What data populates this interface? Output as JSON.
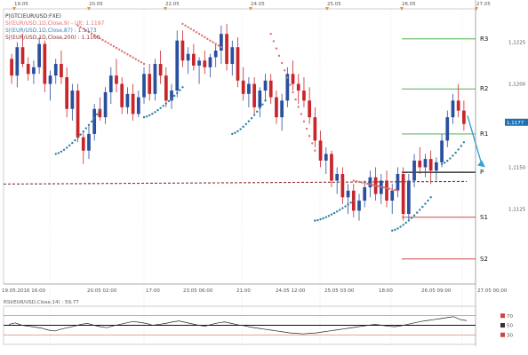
{
  "window": {
    "legend_lines": [
      {
        "text": "P|GTC(EUR/USD:FXE)",
        "color": "#333333"
      },
      {
        "text": "S|(EUR/USD,1D,Close,9) - Ult: 1.1197",
        "color": "#e07070"
      },
      {
        "text": "S|(EUR/USD,1D,Close,87) : 1.1173",
        "color": "#3b7fb5"
      },
      {
        "text": "S|(EUR/USD,1D,Close,200) : 1.1160",
        "color": "#8a3030"
      }
    ]
  },
  "top_dates": [
    "19.05",
    "20.05",
    "22.05",
    "24.05",
    "25.05",
    "26.05",
    "27.05"
  ],
  "bottom_dates": [
    "19.05.2016 16:00",
    "20.05 02:00",
    "17:00",
    "23.05 06:00",
    "21:00",
    "24.05 12:00",
    "25.05 03:00",
    "18:00",
    "26.05 09:00",
    "27.05 00:00"
  ],
  "price_labels": [
    "1,1225",
    "1,1200",
    "1,1150",
    "1,1125"
  ],
  "current_price": "1,1177",
  "pivot_levels": [
    {
      "name": "R3",
      "color": "#38a838"
    },
    {
      "name": "R2",
      "color": "#38a838"
    },
    {
      "name": "R1",
      "color": "#38a838"
    },
    {
      "name": "P",
      "color": "#111111"
    },
    {
      "name": "S1",
      "color": "#cc2a2a"
    },
    {
      "name": "S2",
      "color": "#cc2a2a"
    }
  ],
  "rsi_panel": {
    "title": "RSI(EUR/USD,Close,14) : 59,77",
    "axis_labels": [
      "70",
      "50",
      "30"
    ]
  },
  "colors": {
    "bull_candle": "#2a4f9e",
    "bear_candle": "#c9262b",
    "sar_down": "#e07070",
    "sar_up": "#2a7ea0",
    "arrow": "#3aa0d6",
    "ma_dashed": "#8a3030"
  },
  "chart_data": {
    "type": "candlestick",
    "series_candles": "EUR/USD",
    "pivots": {
      "R3": 1.1227,
      "R2": 1.1197,
      "R1": 1.117,
      "P": 1.1147,
      "S1": 1.112,
      "S2": 1.1095
    },
    "ma_value": 1.1141,
    "rsi_last": 59.77,
    "candles": [
      [
        1.1215,
        1.1218,
        1.12,
        1.1205
      ],
      [
        1.1205,
        1.1225,
        1.1198,
        1.1222
      ],
      [
        1.1222,
        1.123,
        1.121,
        1.1212
      ],
      [
        1.1212,
        1.1216,
        1.1202,
        1.1206
      ],
      [
        1.1206,
        1.1214,
        1.12,
        1.121
      ],
      [
        1.121,
        1.1228,
        1.1206,
        1.1224
      ],
      [
        1.1224,
        1.1226,
        1.1195,
        1.12
      ],
      [
        1.12,
        1.1208,
        1.119,
        1.1205
      ],
      [
        1.1205,
        1.1215,
        1.12,
        1.1212
      ],
      [
        1.1212,
        1.122,
        1.12,
        1.1204
      ],
      [
        1.1204,
        1.121,
        1.118,
        1.1185
      ],
      [
        1.1185,
        1.12,
        1.1178,
        1.1196
      ],
      [
        1.1196,
        1.12,
        1.1165,
        1.1168
      ],
      [
        1.1168,
        1.1172,
        1.1152,
        1.116
      ],
      [
        1.116,
        1.1175,
        1.1155,
        1.117
      ],
      [
        1.117,
        1.1188,
        1.1166,
        1.1185
      ],
      [
        1.1185,
        1.1192,
        1.1178,
        1.118
      ],
      [
        1.118,
        1.1198,
        1.1176,
        1.1195
      ],
      [
        1.1195,
        1.121,
        1.1188,
        1.1205
      ],
      [
        1.1205,
        1.1215,
        1.1195,
        1.12
      ],
      [
        1.12,
        1.1204,
        1.1182,
        1.1186
      ],
      [
        1.1186,
        1.1198,
        1.1182,
        1.1194
      ],
      [
        1.1194,
        1.12,
        1.1178,
        1.1182
      ],
      [
        1.1182,
        1.1196,
        1.118,
        1.1192
      ],
      [
        1.1192,
        1.121,
        1.1188,
        1.1206
      ],
      [
        1.1206,
        1.1212,
        1.119,
        1.1194
      ],
      [
        1.1194,
        1.1215,
        1.119,
        1.1212
      ],
      [
        1.1212,
        1.122,
        1.12,
        1.1205
      ],
      [
        1.1205,
        1.121,
        1.1186,
        1.119
      ],
      [
        1.119,
        1.12,
        1.1185,
        1.1196
      ],
      [
        1.1196,
        1.1232,
        1.1192,
        1.1226
      ],
      [
        1.1226,
        1.1232,
        1.121,
        1.1214
      ],
      [
        1.1214,
        1.1222,
        1.1206,
        1.1218
      ],
      [
        1.1218,
        1.1224,
        1.1208,
        1.1211
      ],
      [
        1.1211,
        1.1216,
        1.12,
        1.1214
      ],
      [
        1.1214,
        1.122,
        1.1206,
        1.121
      ],
      [
        1.121,
        1.1218,
        1.1204,
        1.1216
      ],
      [
        1.1216,
        1.1224,
        1.121,
        1.122
      ],
      [
        1.122,
        1.1235,
        1.1212,
        1.123
      ],
      [
        1.123,
        1.1236,
        1.1208,
        1.1212
      ],
      [
        1.1212,
        1.1226,
        1.1205,
        1.1222
      ],
      [
        1.1222,
        1.1228,
        1.1198,
        1.1202
      ],
      [
        1.1202,
        1.121,
        1.119,
        1.1194
      ],
      [
        1.1194,
        1.1204,
        1.1186,
        1.12
      ],
      [
        1.12,
        1.1204,
        1.1182,
        1.1186
      ],
      [
        1.1186,
        1.1198,
        1.118,
        1.1196
      ],
      [
        1.1196,
        1.1206,
        1.119,
        1.1202
      ],
      [
        1.1202,
        1.1206,
        1.1188,
        1.1192
      ],
      [
        1.1192,
        1.1196,
        1.1176,
        1.118
      ],
      [
        1.118,
        1.1194,
        1.1172,
        1.119
      ],
      [
        1.119,
        1.121,
        1.1186,
        1.1206
      ],
      [
        1.1206,
        1.1214,
        1.1196,
        1.12
      ],
      [
        1.12,
        1.1206,
        1.1188,
        1.1196
      ],
      [
        1.1196,
        1.1204,
        1.1186,
        1.119
      ],
      [
        1.119,
        1.1198,
        1.1176,
        1.118
      ],
      [
        1.118,
        1.1186,
        1.1162,
        1.1166
      ],
      [
        1.1166,
        1.1172,
        1.115,
        1.1154
      ],
      [
        1.1154,
        1.1162,
        1.1146,
        1.1158
      ],
      [
        1.1158,
        1.116,
        1.1138,
        1.1142
      ],
      [
        1.1142,
        1.115,
        1.1134,
        1.1146
      ],
      [
        1.1146,
        1.115,
        1.1128,
        1.1132
      ],
      [
        1.1132,
        1.114,
        1.1122,
        1.1136
      ],
      [
        1.1136,
        1.114,
        1.112,
        1.1124
      ],
      [
        1.1124,
        1.1134,
        1.1118,
        1.113
      ],
      [
        1.113,
        1.1142,
        1.1126,
        1.1138
      ],
      [
        1.1138,
        1.1148,
        1.1132,
        1.1144
      ],
      [
        1.1144,
        1.115,
        1.113,
        1.1134
      ],
      [
        1.1134,
        1.1146,
        1.1128,
        1.1142
      ],
      [
        1.1142,
        1.1148,
        1.1126,
        1.113
      ],
      [
        1.113,
        1.114,
        1.1122,
        1.1136
      ],
      [
        1.1136,
        1.115,
        1.1132,
        1.1146
      ],
      [
        1.1146,
        1.115,
        1.1118,
        1.1122
      ],
      [
        1.1122,
        1.1146,
        1.1118,
        1.1142
      ],
      [
        1.1142,
        1.1158,
        1.1138,
        1.1154
      ],
      [
        1.1154,
        1.1162,
        1.1146,
        1.115
      ],
      [
        1.115,
        1.1158,
        1.1144,
        1.1155
      ],
      [
        1.1155,
        1.116,
        1.114,
        1.1148
      ],
      [
        1.1148,
        1.1156,
        1.1142,
        1.1153
      ],
      [
        1.1153,
        1.117,
        1.115,
        1.1166
      ],
      [
        1.1166,
        1.1184,
        1.1162,
        1.118
      ],
      [
        1.118,
        1.1194,
        1.1176,
        1.119
      ],
      [
        1.119,
        1.12,
        1.118,
        1.1184
      ],
      [
        1.1184,
        1.119,
        1.1172,
        1.1176
      ]
    ],
    "sar_up_segments": [
      [
        8,
        16,
        1.1158,
        1.1184
      ],
      [
        24,
        31,
        1.118,
        1.1198
      ],
      [
        40,
        46,
        1.117,
        1.119
      ],
      [
        55,
        62,
        1.1118,
        1.113
      ],
      [
        69,
        76,
        1.1112,
        1.1132
      ],
      [
        78,
        82,
        1.1152,
        1.1165
      ]
    ],
    "sar_down_segments": [
      [
        12,
        24,
        1.1235,
        1.1212
      ],
      [
        31,
        38,
        1.1236,
        1.1222
      ],
      [
        47,
        55,
        1.123,
        1.116
      ],
      [
        62,
        70,
        1.1142,
        1.1136
      ]
    ],
    "rsi": [
      52,
      55,
      50,
      48,
      46,
      44,
      40,
      38,
      42,
      45,
      48,
      52,
      54,
      50,
      47,
      45,
      49,
      52,
      55,
      58,
      56,
      54,
      50,
      52,
      54,
      57,
      59,
      56,
      53,
      50,
      48,
      52,
      55,
      57,
      54,
      51,
      49,
      46,
      44,
      42,
      40,
      38,
      36,
      34,
      33,
      32,
      33,
      34,
      36,
      38,
      40,
      42,
      44,
      46,
      48,
      50,
      52,
      50,
      48,
      47,
      49,
      52,
      55,
      58,
      60,
      62,
      64,
      66,
      68,
      62,
      59.77
    ]
  }
}
